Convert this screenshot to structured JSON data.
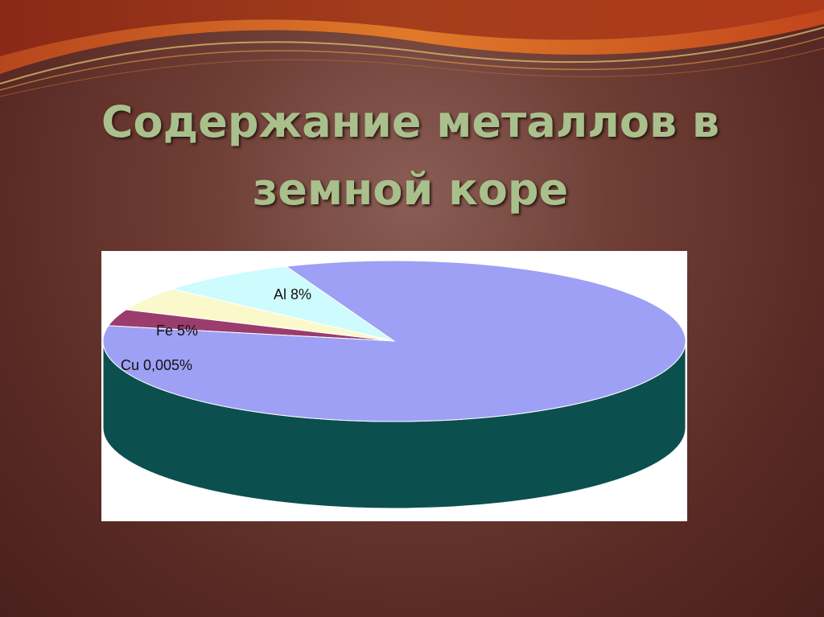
{
  "slide": {
    "title": "Содержание металлов в земной коре"
  },
  "chart_data": {
    "type": "pie",
    "style": "3d",
    "title": "",
    "slices": [
      {
        "label": "Cu 0,005%",
        "name": "Cu",
        "value": 0.005,
        "color": "#9a3d6c",
        "side_color": "#1b4f6e"
      },
      {
        "label": "Fe 5%",
        "name": "Fe",
        "value": 5,
        "color": "#fbf9cc",
        "side_color": "#eeeab0"
      },
      {
        "label": "Al 8%",
        "name": "Al",
        "value": 8,
        "color": "#cefbfd",
        "side_color": "#a7dde0"
      },
      {
        "label": "",
        "name": "",
        "value": 86.995,
        "color": "#9da0f4",
        "side_color": "#0c4f4f"
      }
    ]
  }
}
